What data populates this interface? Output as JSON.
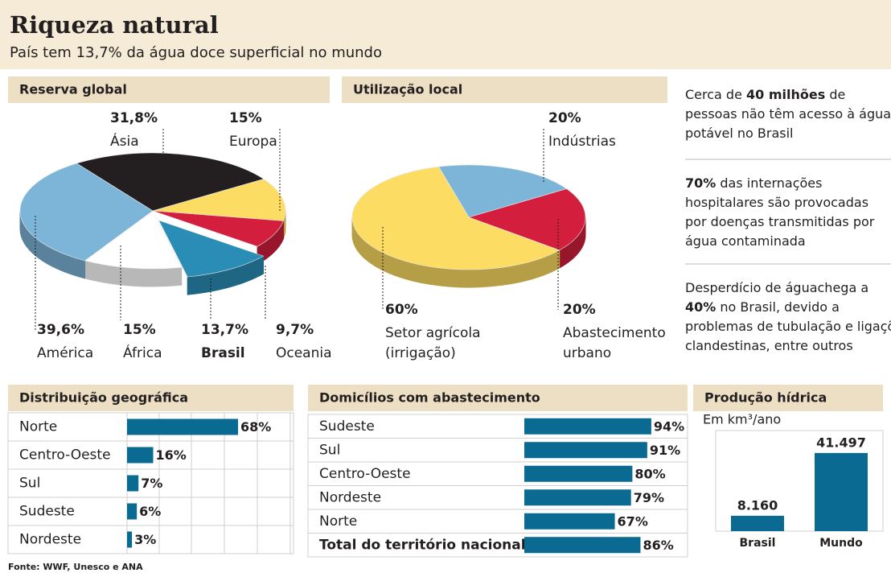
{
  "header": {
    "title": "Riqueza natural",
    "subtitle": "País tem 13,7% da água doce superficial no mundo"
  },
  "chart_data": [
    {
      "type": "pie",
      "title": "Reserva global",
      "categories": [
        [
          "Ásia"
        ],
        [
          "Europa"
        ],
        [
          "Oceania"
        ],
        [
          "Brasil"
        ],
        [
          "África"
        ],
        [
          "América"
        ]
      ],
      "values": [
        31.8,
        15,
        9.7,
        13.7,
        15,
        39.6
      ],
      "value_labels": [
        "31,8%",
        "15%",
        "9,7%",
        "13,7%",
        "15%",
        "39,6%"
      ],
      "colors": [
        "#231f20",
        "#fddc63",
        "#d31f3d",
        "#2a8db6",
        "#ffffff",
        "#7db5d8"
      ],
      "exploded": "Brasil"
    },
    {
      "type": "pie",
      "title": "Utilização local",
      "categories": [
        [
          "Indústrias"
        ],
        [
          "Abastecimento",
          "urbano"
        ],
        [
          "Setor agrícola",
          "(irrigação)"
        ]
      ],
      "values": [
        20,
        20,
        60
      ],
      "value_labels": [
        "20%",
        "20%",
        "60%"
      ],
      "colors": [
        "#7db5d8",
        "#d31f3d",
        "#fddc63"
      ]
    },
    {
      "type": "hbar",
      "title": "Distribuição geográfica",
      "categories": [
        "Norte",
        "Centro-Oeste",
        "Sul",
        "Sudeste",
        "Nordeste"
      ],
      "values": [
        68,
        16,
        7,
        6,
        3
      ],
      "value_labels": [
        "68%",
        "16%",
        "7%",
        "6%",
        "3%"
      ],
      "xlim": [
        0,
        100
      ],
      "color": "#0b6a91"
    },
    {
      "type": "hbar",
      "title": "Domicílios com abastecimento",
      "categories": [
        "Sudeste",
        "Sul",
        "Centro-Oeste",
        "Nordeste",
        "Norte",
        "Total do território nacional"
      ],
      "values": [
        94,
        91,
        80,
        79,
        67,
        86
      ],
      "value_labels": [
        "94%",
        "91%",
        "80%",
        "79%",
        "67%",
        "86%"
      ],
      "xlim": [
        0,
        100
      ],
      "color": "#0b6a91",
      "emphasis": "Total do território nacional"
    },
    {
      "type": "vbar",
      "title": "Produção hídrica",
      "subtitle": "Em km³/ano",
      "categories": [
        "Brasil",
        "Mundo"
      ],
      "values": [
        8160,
        41497
      ],
      "value_labels": [
        "8.160",
        "41.497"
      ],
      "ylim": [
        0,
        50000
      ],
      "color": "#0b6a91"
    }
  ],
  "facts": [
    [
      [
        {
          "text": "Cerca de "
        },
        {
          "text": "40 milhões",
          "bold": true
        },
        {
          "text": " de"
        }
      ],
      [
        {
          "text": "pessoas não têm acesso à água"
        }
      ],
      [
        {
          "text": "potável no Brasil"
        }
      ]
    ],
    [
      [
        {
          "text": "70%",
          "bold": true
        },
        {
          "text": " das internações"
        }
      ],
      [
        {
          "text": "hospitalares são provocadas"
        }
      ],
      [
        {
          "text": "por doenças transmitidas por"
        }
      ],
      [
        {
          "text": "água contaminada"
        }
      ]
    ],
    [
      [
        {
          "text": "Desperdício de águachega a"
        }
      ],
      [
        {
          "text": "40%",
          "bold": true
        },
        {
          "text": " no Brasil, devido a"
        }
      ],
      [
        {
          "text": "problemas de tubulação e ligações"
        }
      ],
      [
        {
          "text": "clandestinas, entre outros"
        }
      ]
    ]
  ],
  "source": "Fonte: WWF, Unesco e ANA"
}
